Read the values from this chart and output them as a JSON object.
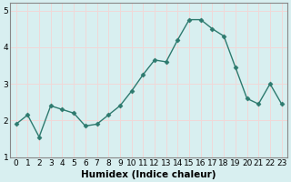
{
  "xlabel": "Humidex (Indice chaleur)",
  "ylabel": "",
  "x_values": [
    0,
    1,
    2,
    3,
    4,
    5,
    6,
    7,
    8,
    9,
    10,
    11,
    12,
    13,
    14,
    15,
    16,
    17,
    18,
    19,
    20,
    21,
    22,
    23
  ],
  "y_values": [
    1.9,
    2.15,
    1.55,
    2.4,
    2.3,
    2.2,
    1.85,
    1.9,
    2.15,
    2.4,
    2.8,
    3.25,
    3.65,
    3.6,
    4.2,
    4.75,
    4.75,
    4.5,
    4.3,
    3.45,
    2.6,
    2.45,
    3.0,
    2.45
  ],
  "line_color": "#2d7a6e",
  "marker": "D",
  "marker_size": 2.5,
  "bg_color": "#d8eff0",
  "grid_color_major": "#f0d8d8",
  "grid_color_minor": "#f0d8d8",
  "axis_bg": "#d8eff0",
  "ylim": [
    1.0,
    5.2
  ],
  "yticks": [
    1,
    2,
    3,
    4,
    5
  ],
  "xticks": [
    0,
    1,
    2,
    3,
    4,
    5,
    6,
    7,
    8,
    9,
    10,
    11,
    12,
    13,
    14,
    15,
    16,
    17,
    18,
    19,
    20,
    21,
    22,
    23
  ],
  "tick_fontsize": 6.5,
  "xlabel_fontsize": 7.5,
  "line_width": 1.0,
  "spine_color": "#888888"
}
